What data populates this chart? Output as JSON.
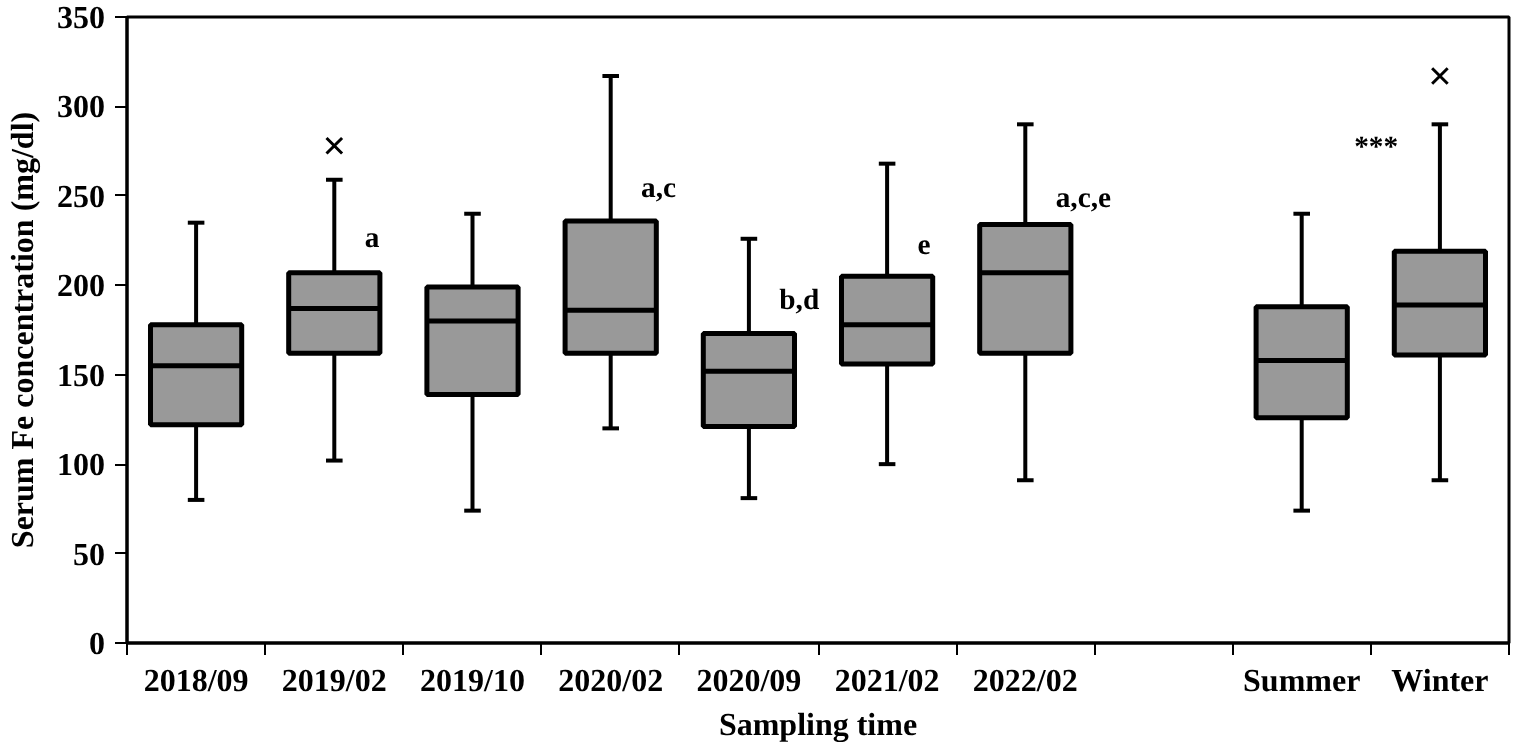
{
  "chart_data": {
    "type": "box",
    "xlabel": "Sampling time",
    "ylabel": "Serum Fe concentration (mg/dl)",
    "categories": [
      "2018/09",
      "2019/02",
      "2019/10",
      "2020/02",
      "2020/09",
      "2021/02",
      "2022/02",
      null,
      "Summer",
      "Winter"
    ],
    "color": "#999999",
    "boxes": [
      {
        "low": 80,
        "q1": 122,
        "median": 155,
        "q3": 178,
        "high": 235
      },
      {
        "low": 102,
        "q1": 162,
        "median": 187,
        "q3": 207,
        "high": 259,
        "outliers": [
          278
        ]
      },
      {
        "low": 74,
        "q1": 139,
        "median": 180,
        "q3": 199,
        "high": 240
      },
      {
        "low": 120,
        "q1": 162,
        "median": 186,
        "q3": 236,
        "high": 317
      },
      {
        "low": 81,
        "q1": 121,
        "median": 152,
        "q3": 173,
        "high": 226
      },
      {
        "low": 100,
        "q1": 156,
        "median": 178,
        "q3": 205,
        "high": 268
      },
      {
        "low": 91,
        "q1": 162,
        "median": 207,
        "q3": 234,
        "high": 290
      },
      null,
      {
        "low": 74,
        "q1": 126,
        "median": 158,
        "q3": 188,
        "high": 240
      },
      {
        "low": 91,
        "q1": 161,
        "median": 189,
        "q3": 219,
        "high": 290,
        "outliers": [
          317
        ]
      }
    ],
    "annotations": [
      {
        "text": "a",
        "x": "2019/02",
        "y": 226
      },
      {
        "text": "a,c",
        "x": "2020/02",
        "y": 254
      },
      {
        "text": "b,d",
        "x": "2020/09",
        "y": 191
      },
      {
        "text": "e",
        "x": "2021/02",
        "y": 223
      },
      {
        "text": "a,c,e",
        "x": "2022/02",
        "y": 248
      },
      "***"
    ],
    "ylim": [
      0,
      350
    ],
    "yticks": [
      0,
      50,
      100,
      150,
      200,
      250,
      300,
      350
    ],
    "grid": false
  }
}
